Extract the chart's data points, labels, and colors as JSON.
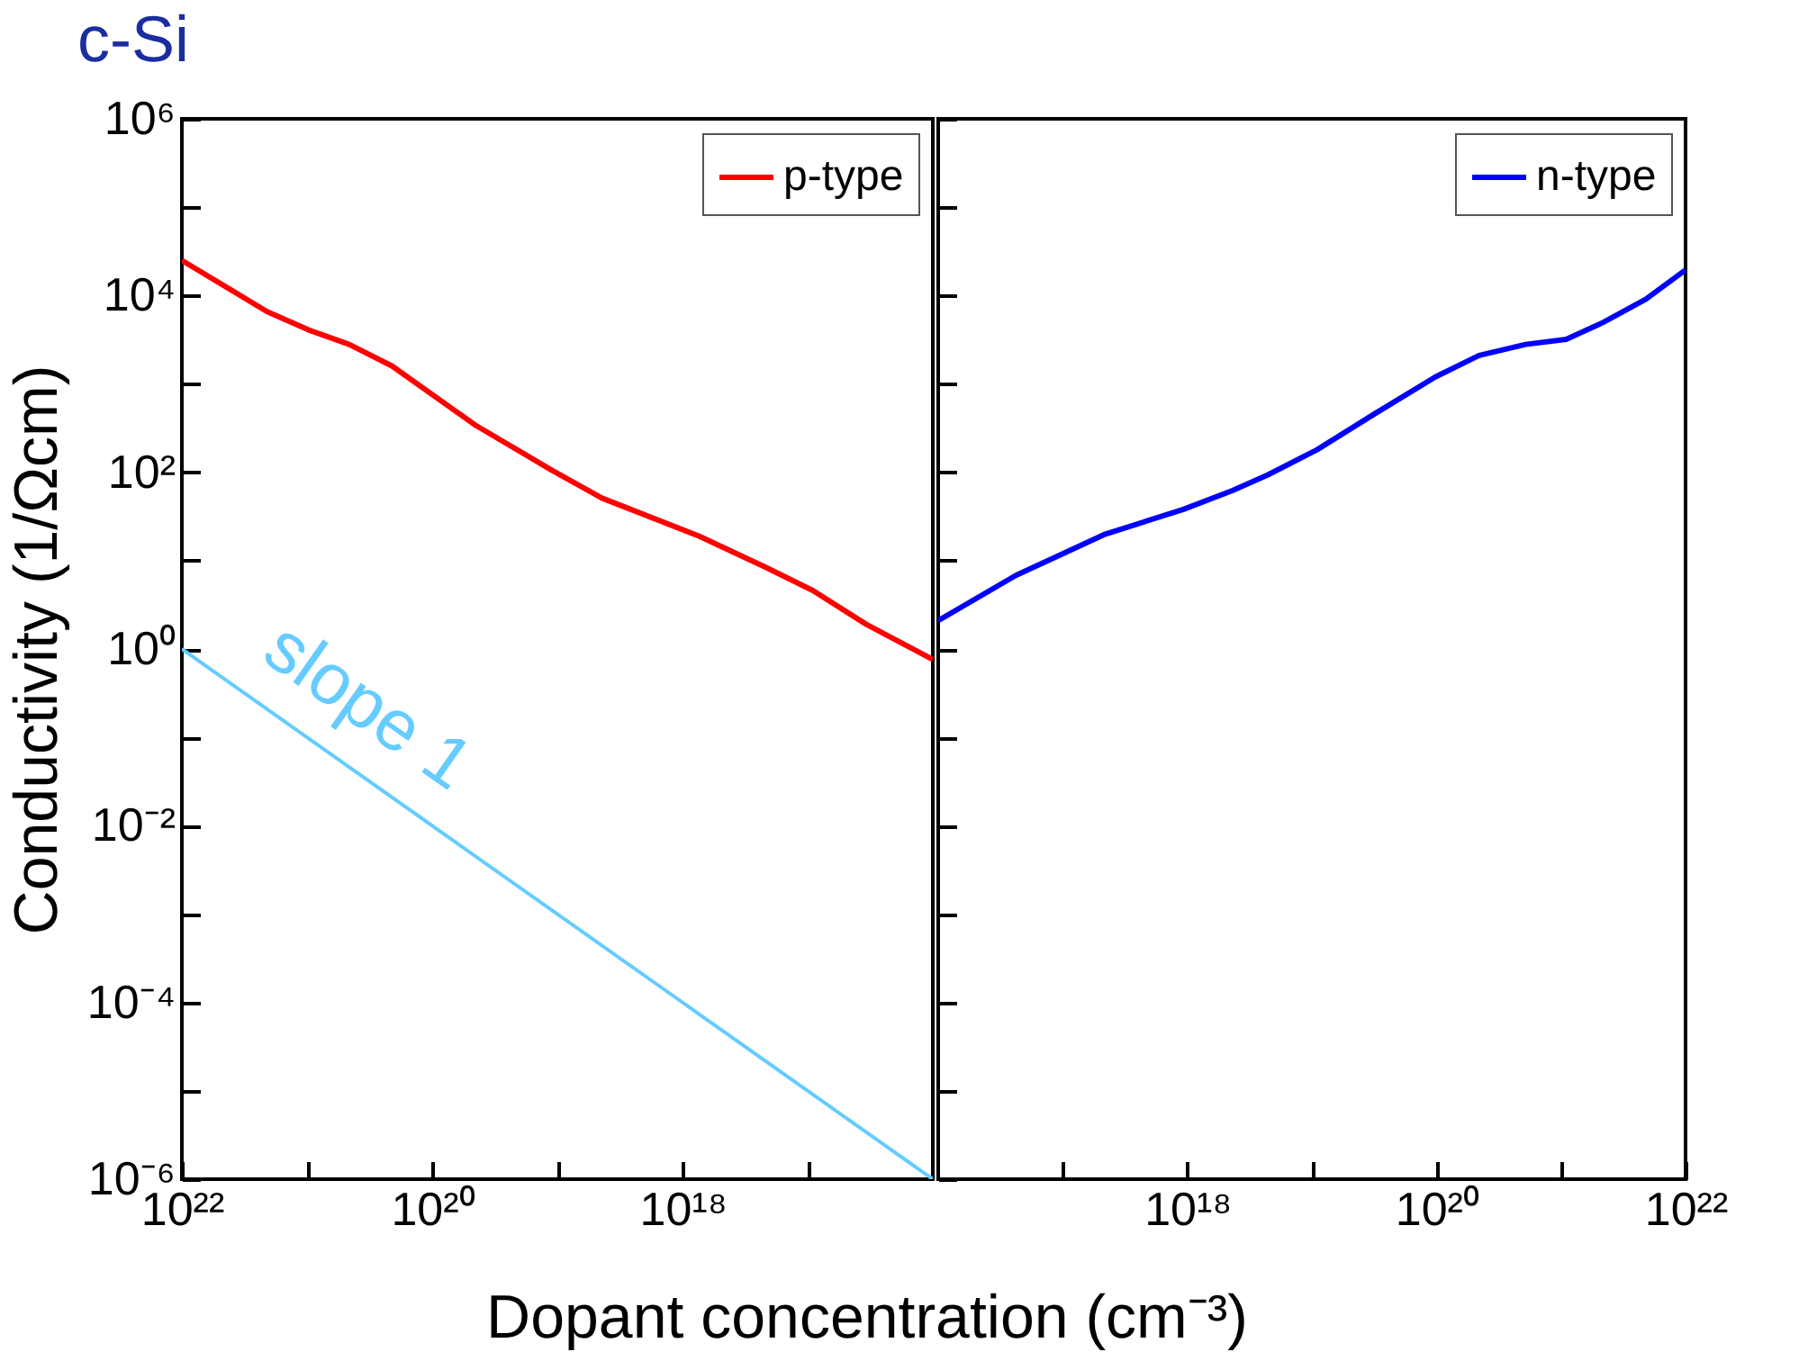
{
  "chart_data": [
    {
      "type": "line",
      "title": "c-Si",
      "ylabel": "Conductivity (1/Ωcm)",
      "xlabel": "Dopant concentration (cm⁻³)",
      "log": "xy",
      "legend": "top right",
      "grid": false,
      "xlim": [
        1e+22,
        1e+16
      ],
      "ylim": [
        1e-06,
        1000000.0
      ],
      "xticks": [
        {
          "value": 1e+22,
          "label": "10²²"
        },
        {
          "value": 1e+21,
          "label": null
        },
        {
          "value": 1e+20,
          "label": "10²⁰"
        },
        {
          "value": 1e+19,
          "label": null
        },
        {
          "value": 1e+18,
          "label": "10¹⁸"
        },
        {
          "value": 1e+17,
          "label": null
        }
      ],
      "yticks": [
        {
          "value": 1000000.0,
          "label": "10⁶"
        },
        {
          "value": 100000.0,
          "label": null
        },
        {
          "value": 10000.0,
          "label": "10⁴"
        },
        {
          "value": 1000.0,
          "label": null
        },
        {
          "value": 100,
          "label": "10²"
        },
        {
          "value": 10,
          "label": null
        },
        {
          "value": 1,
          "label": "10⁰"
        },
        {
          "value": 0.1,
          "label": null
        },
        {
          "value": 0.01,
          "label": "10⁻²"
        },
        {
          "value": 0.001,
          "label": null
        },
        {
          "value": 0.0001,
          "label": "10⁻⁴"
        },
        {
          "value": 1e-05,
          "label": null
        },
        {
          "value": 1e-06,
          "label": "10⁻⁶"
        }
      ],
      "series": [
        {
          "name": "p-type",
          "color": "#ff0000",
          "x": [
            1e+22,
            2.1e+21,
            9.8e+20,
            4.6e+20,
            2.1e+20,
            4.5e+19,
            1.1e+19,
            4.4e+18,
            7.4e+17,
            2.2e+17,
            9.1e+16,
            3.4e+16,
            1e+16
          ],
          "values": [
            25000.0,
            6600,
            4100,
            2800,
            1600,
            340,
            105,
            51,
            19,
            8.5,
            4.6,
            1.9,
            0.76
          ]
        },
        {
          "color": "#66ccff",
          "x": [
            1e+22,
            1e+16
          ],
          "values": [
            1,
            1e-06
          ]
        }
      ],
      "annotations": [
        "slope 1"
      ]
    },
    {
      "type": "line",
      "log": "xy",
      "legend": "top right",
      "grid": false,
      "tick_labels": "x",
      "xlim": [
        1e+16,
        1e+22
      ],
      "ylim": [
        1e-06,
        1000000.0
      ],
      "xticks": [
        {
          "value": 1e+17,
          "label": null
        },
        {
          "value": 1e+18,
          "label": "10¹⁸"
        },
        {
          "value": 1e+19,
          "label": null
        },
        {
          "value": 1e+20,
          "label": "10²⁰"
        },
        {
          "value": 1e+21,
          "label": null
        },
        {
          "value": 1e+22,
          "label": "10²²"
        }
      ],
      "yticks": [
        {
          "value": 1000000.0,
          "label": null
        },
        {
          "value": 100000.0,
          "label": null
        },
        {
          "value": 10000.0,
          "label": null
        },
        {
          "value": 1000.0,
          "label": null
        },
        {
          "value": 100,
          "label": null
        },
        {
          "value": 10,
          "label": null
        },
        {
          "value": 1,
          "label": null
        },
        {
          "value": 0.1,
          "label": null
        },
        {
          "value": 0.01,
          "label": null
        },
        {
          "value": 0.001,
          "label": null
        },
        {
          "value": 0.0001,
          "label": null
        },
        {
          "value": 1e-05,
          "label": null
        },
        {
          "value": 1e-06,
          "label": null
        }
      ],
      "series": [
        {
          "name": "n-type",
          "color": "#0000ff",
          "x": [
            1e+16,
            4.2e+16,
            2.2e+17,
            9.3e+17,
            2.3e+18,
            4.4e+18,
            1.1e+19,
            3.2e+19,
            9.8e+19,
            2.2e+20,
            5.2e+20,
            1.1e+21,
            2.2e+21,
            4.8e+21,
            1e+22
          ],
          "values": [
            2.1,
            6.8,
            20,
            38,
            62,
            93,
            180,
            460,
            1200,
            2100,
            2800,
            3200,
            5000,
            9100,
            19500.0
          ]
        }
      ]
    }
  ]
}
